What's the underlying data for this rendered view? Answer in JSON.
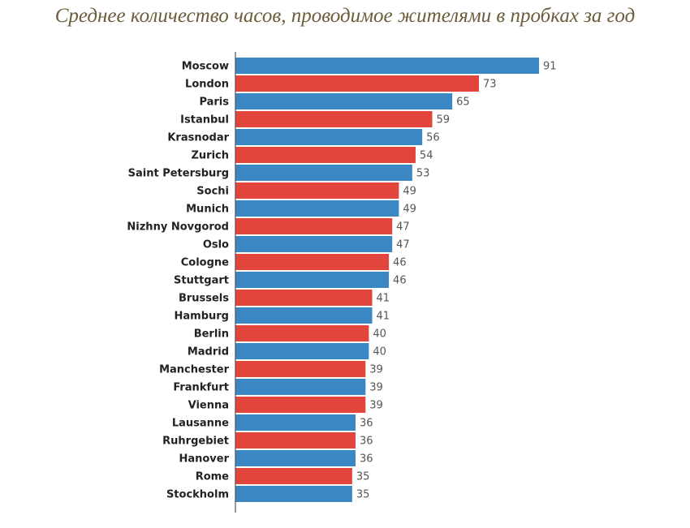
{
  "chart_data": {
    "type": "bar",
    "orientation": "horizontal",
    "title": "Среднее количество часов, проводимое жителями в пробках за год",
    "xlabel": "",
    "ylabel": "",
    "xlim": [
      0,
      91
    ],
    "grid": false,
    "colors": {
      "blue": "#3b87c4",
      "red": "#e2453c",
      "axis": "#555555"
    },
    "categories": [
      "Moscow",
      "London",
      "Paris",
      "Istanbul",
      "Krasnodar",
      "Zurich",
      "Saint Petersburg",
      "Sochi",
      "Munich",
      "Nizhny Novgorod",
      "Oslo",
      "Cologne",
      "Stuttgart",
      "Brussels",
      "Hamburg",
      "Berlin",
      "Madrid",
      "Manchester",
      "Frankfurt",
      "Vienna",
      "Lausanne",
      "Ruhrgebiet",
      "Hanover",
      "Rome",
      "Stockholm"
    ],
    "values": [
      91,
      73,
      65,
      59,
      56,
      54,
      53,
      49,
      49,
      47,
      47,
      46,
      46,
      41,
      41,
      40,
      40,
      39,
      39,
      39,
      36,
      36,
      36,
      35,
      35
    ],
    "bar_colors": [
      "blue",
      "red",
      "blue",
      "red",
      "blue",
      "red",
      "blue",
      "red",
      "blue",
      "red",
      "blue",
      "red",
      "blue",
      "red",
      "blue",
      "red",
      "blue",
      "red",
      "blue",
      "red",
      "blue",
      "red",
      "blue",
      "red",
      "blue"
    ]
  }
}
